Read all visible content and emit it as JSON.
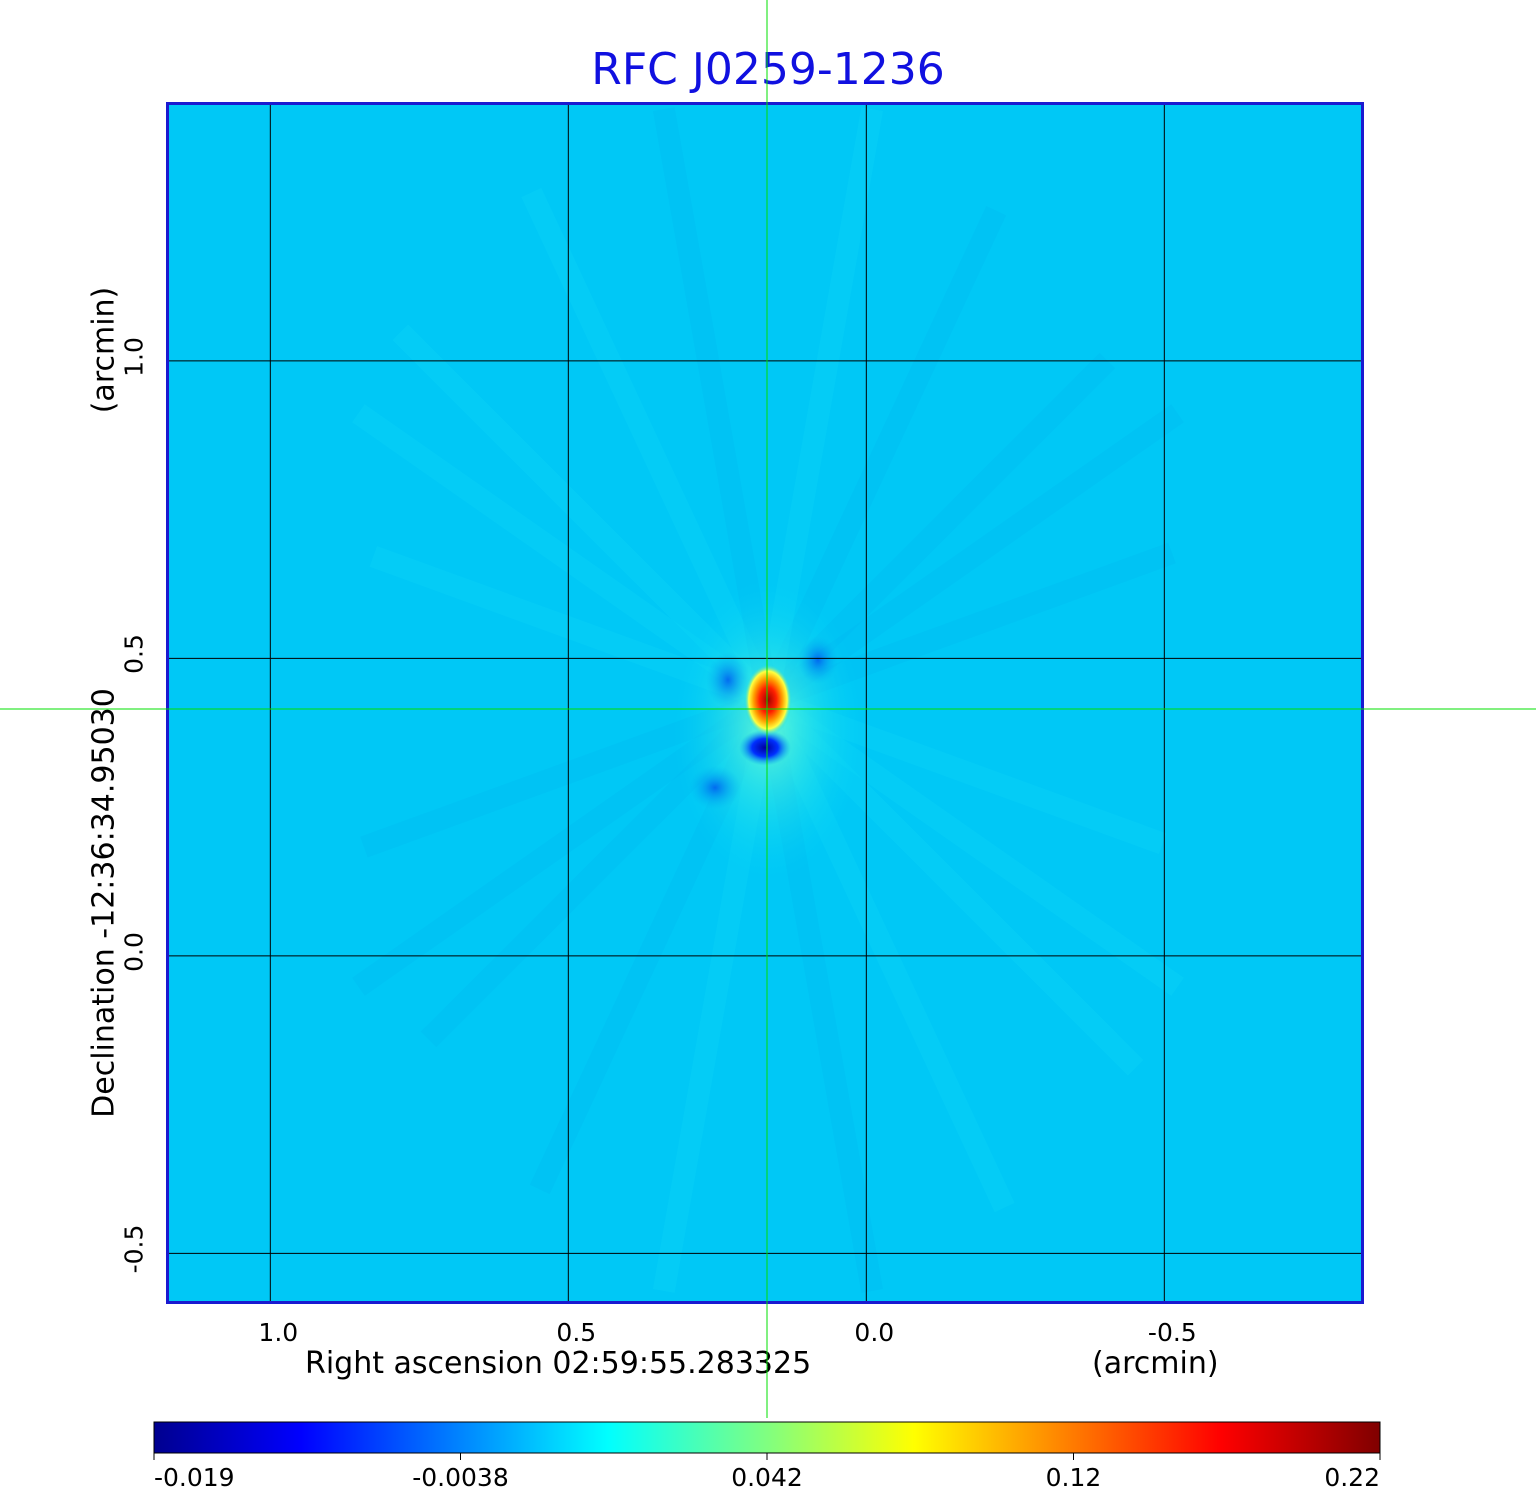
{
  "chart_data": {
    "type": "heatmap",
    "title": "RFC J0259-1236",
    "xlabel": "Right ascension  02:59:55.283325",
    "xunit": "(arcmin)",
    "ylabel": "Declination  -12:36:34.95030",
    "yunit": "(arcmin)",
    "xticks": [
      "1.0",
      "0.5",
      "0.0",
      "-0.5"
    ],
    "yticks": [
      "1.0",
      "0.5",
      "0.0",
      "-0.5"
    ],
    "xlim": [
      1.17,
      -0.83
    ],
    "ylim": [
      -0.58,
      1.43
    ],
    "grid": true,
    "crosshair": {
      "x": 0.17,
      "y": 0.42
    },
    "colorbar": {
      "ticks": [
        "-0.019",
        "-0.0038",
        "0.042",
        "0.12",
        "0.22"
      ],
      "colormap": "jet"
    },
    "peak": {
      "x": 0.165,
      "y": 0.43,
      "value": 0.22
    },
    "negative_lobe": {
      "x": 0.17,
      "y": 0.35,
      "value": -0.019
    }
  },
  "colors": {
    "title": "#1010e0",
    "frame": "#1a1ad0",
    "background_field": "#00c8f6",
    "crosshair": "#00e000",
    "grid": "#000000"
  }
}
